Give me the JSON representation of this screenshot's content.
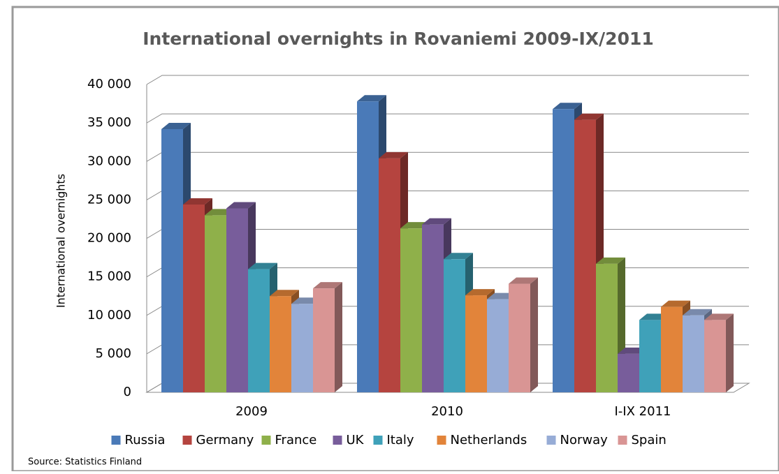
{
  "chart_data": {
    "type": "bar3d",
    "title": "International overnights in Rovaniemi 2009-IX/2011",
    "y_label": "International overnights",
    "source": "Source:  Statistics Finland",
    "categories": [
      "2009",
      "2010",
      "I-IX 2011"
    ],
    "series": [
      {
        "name": "Russia",
        "color": "#4a7ab8",
        "values": [
          34200,
          37800,
          36800
        ]
      },
      {
        "name": "Germany",
        "color": "#b5443f",
        "values": [
          24400,
          30400,
          35400
        ]
      },
      {
        "name": "France",
        "color": "#8fb04a",
        "values": [
          23000,
          21300,
          16700
        ]
      },
      {
        "name": "UK",
        "color": "#785d9b",
        "values": [
          23900,
          21800,
          5000
        ]
      },
      {
        "name": "Italy",
        "color": "#3fa1b9",
        "values": [
          16000,
          17300,
          9400
        ]
      },
      {
        "name": "Netherlands",
        "color": "#e2843a",
        "values": [
          12500,
          12600,
          11100
        ]
      },
      {
        "name": "Norway",
        "color": "#97acd6",
        "values": [
          11500,
          12100,
          10000
        ]
      },
      {
        "name": "Spain",
        "color": "#d99594",
        "values": [
          13500,
          14100,
          9400
        ]
      }
    ],
    "ylim": [
      0,
      40000
    ],
    "yticks": [
      0,
      {
        "value": 5000,
        "label": "5 000"
      },
      {
        "value": 10000,
        "label": "10 000"
      },
      {
        "value": 15000,
        "label": "15 000"
      },
      {
        "value": 20000,
        "label": "20 000"
      },
      {
        "value": 25000,
        "label": "25 000"
      },
      {
        "value": 30000,
        "label": "30 000"
      },
      {
        "value": 35000,
        "label": "35 000"
      },
      {
        "value": 40000,
        "label": "40 000"
      }
    ],
    "grid": true,
    "legend": "bottom"
  }
}
